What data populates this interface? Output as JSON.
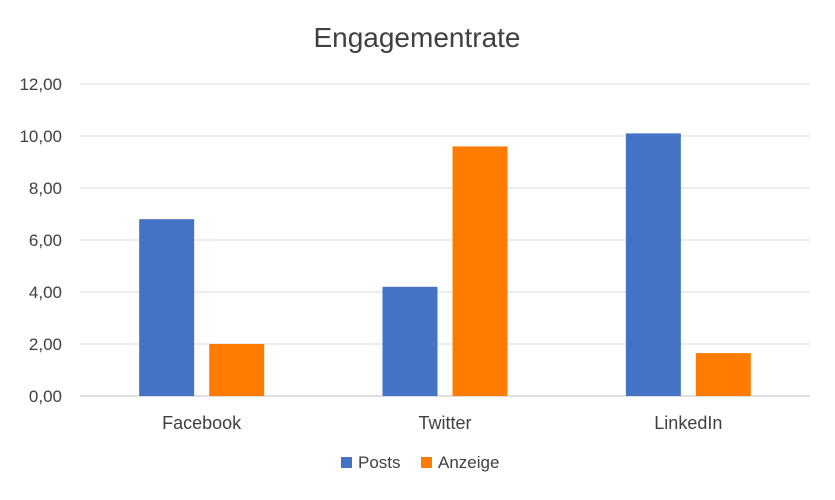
{
  "chart_data": {
    "type": "bar",
    "title": "Engagementrate",
    "categories": [
      "Facebook",
      "Twitter",
      "LinkedIn"
    ],
    "series": [
      {
        "name": "Posts",
        "color": "#4472c4",
        "values": [
          6.8,
          4.2,
          10.1
        ]
      },
      {
        "name": "Anzeige",
        "color": "#ff7c00",
        "values": [
          2.0,
          9.6,
          1.65
        ]
      }
    ],
    "yticks": [
      "0,00",
      "2,00",
      "4,00",
      "6,00",
      "8,00",
      "10,00",
      "12,00"
    ],
    "ylim": [
      0,
      12
    ],
    "grid": true,
    "legend": "bottom"
  }
}
